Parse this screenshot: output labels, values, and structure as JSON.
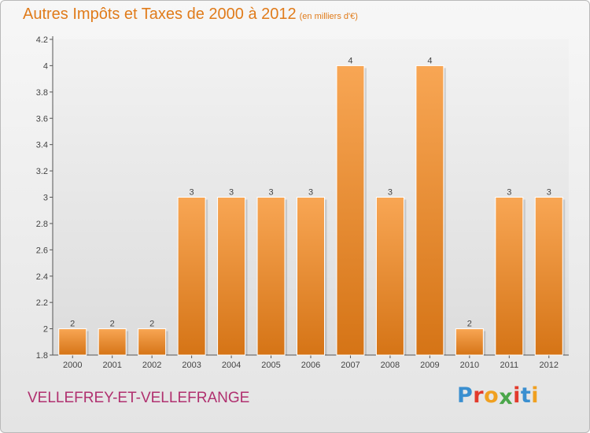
{
  "header": {
    "title": "Autres Impôts et Taxes de 2000 à 2012",
    "subtitle": "(en milliers d'€)"
  },
  "footer": {
    "commune": "VELLEFREY-ET-VELLEFRANGE",
    "logo_text": "Proxiti",
    "logo_letters": [
      {
        "ch": "P",
        "color": "#3a8fd0"
      },
      {
        "ch": "r",
        "color": "#e23a2c"
      },
      {
        "ch": "o",
        "color": "#f0a020"
      },
      {
        "ch": "x",
        "color": "#4aa64a"
      },
      {
        "ch": "i",
        "color": "#e23a2c"
      },
      {
        "ch": "t",
        "color": "#3a8fd0"
      },
      {
        "ch": "i",
        "color": "#f0a020"
      }
    ]
  },
  "colors": {
    "bar_top": "#f8a654",
    "bar_bottom": "#d57416",
    "accent": "#e07b1a",
    "commune": "#b0306f"
  },
  "chart_data": {
    "type": "bar",
    "categories": [
      "2000",
      "2001",
      "2002",
      "2003",
      "2004",
      "2005",
      "2006",
      "2007",
      "2008",
      "2009",
      "2010",
      "2011",
      "2012"
    ],
    "values": [
      2,
      2,
      2,
      3,
      3,
      3,
      3,
      4,
      3,
      4,
      2,
      3,
      3
    ],
    "data_labels": [
      "2",
      "2",
      "2",
      "3",
      "3",
      "3",
      "3",
      "4",
      "3",
      "4",
      "2",
      "3",
      "3"
    ],
    "y_ticks": [
      "1.8",
      "2",
      "2.2",
      "2.4",
      "2.6",
      "2.8",
      "3",
      "3.2",
      "3.4",
      "3.6",
      "3.8",
      "4",
      "4.2"
    ],
    "ylim": [
      1.8,
      4.2
    ],
    "grid": false,
    "title": "Autres Impôts et Taxes de 2000 à 2012",
    "xlabel": "",
    "ylabel": ""
  }
}
